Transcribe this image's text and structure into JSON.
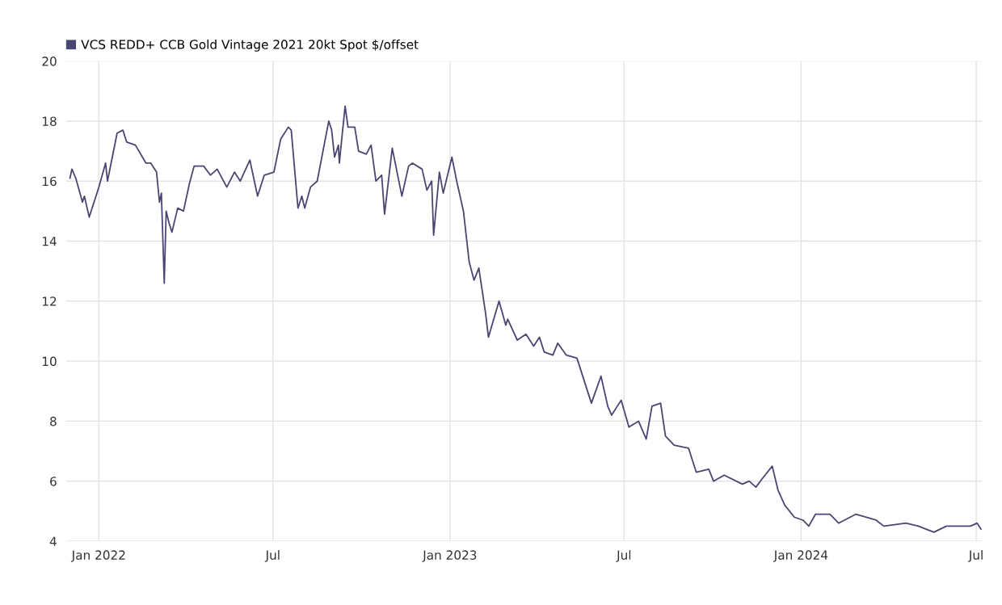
{
  "chart_data": {
    "type": "line",
    "legend": "top left",
    "grid": true,
    "marker": "none",
    "line_style": "solid",
    "xlim": [
      "2021-11-28",
      "2024-07-07"
    ],
    "xticks": [
      {
        "value": "2022-01-01",
        "label": "Jan 2022"
      },
      {
        "value": "2022-07-01",
        "label": "Jul"
      },
      {
        "value": "2023-01-01",
        "label": "Jan 2023"
      },
      {
        "value": "2023-07-01",
        "label": "Jul"
      },
      {
        "value": "2024-01-01",
        "label": "Jan 2024"
      },
      {
        "value": "2024-07-01",
        "label": "Jul"
      }
    ],
    "ylim": [
      4,
      20
    ],
    "yticks": [
      4,
      6,
      8,
      10,
      12,
      14,
      16,
      18,
      20
    ],
    "x": [
      "2021-12-02",
      "2021-12-04",
      "2021-12-08",
      "2021-12-15",
      "2021-12-17",
      "2021-12-22",
      "2022-01-01",
      "2022-01-08",
      "2022-01-10",
      "2022-01-20",
      "2022-01-26",
      "2022-01-30",
      "2022-02-08",
      "2022-02-19",
      "2022-02-24",
      "2022-03-02",
      "2022-03-05",
      "2022-03-07",
      "2022-03-10",
      "2022-03-12",
      "2022-03-15",
      "2022-03-18",
      "2022-03-24",
      "2022-03-30",
      "2022-04-05",
      "2022-04-10",
      "2022-04-20",
      "2022-04-27",
      "2022-05-04",
      "2022-05-14",
      "2022-05-22",
      "2022-05-28",
      "2022-06-07",
      "2022-06-15",
      "2022-06-22",
      "2022-07-02",
      "2022-07-09",
      "2022-07-17",
      "2022-07-20",
      "2022-07-27",
      "2022-07-31",
      "2022-08-03",
      "2022-08-09",
      "2022-08-16",
      "2022-08-28",
      "2022-08-31",
      "2022-09-03",
      "2022-09-07",
      "2022-09-08",
      "2022-09-14",
      "2022-09-17",
      "2022-09-22",
      "2022-09-24",
      "2022-09-28",
      "2022-10-06",
      "2022-10-11",
      "2022-10-16",
      "2022-10-22",
      "2022-10-25",
      "2022-11-02",
      "2022-11-12",
      "2022-11-19",
      "2022-11-23",
      "2022-12-03",
      "2022-12-08",
      "2022-12-13",
      "2022-12-15",
      "2022-12-21",
      "2022-12-25",
      "2023-01-03",
      "2023-01-08",
      "2023-01-15",
      "2023-01-21",
      "2023-01-26",
      "2023-01-31",
      "2023-02-07",
      "2023-02-10",
      "2023-02-21",
      "2023-02-28",
      "2023-03-02",
      "2023-03-12",
      "2023-03-21",
      "2023-03-29",
      "2023-04-04",
      "2023-04-09",
      "2023-04-18",
      "2023-04-23",
      "2023-05-02",
      "2023-05-13",
      "2023-05-20",
      "2023-05-28",
      "2023-06-07",
      "2023-06-14",
      "2023-06-18",
      "2023-06-28",
      "2023-07-06",
      "2023-07-16",
      "2023-07-24",
      "2023-07-30",
      "2023-08-08",
      "2023-08-13",
      "2023-08-22",
      "2023-09-06",
      "2023-09-09",
      "2023-09-14",
      "2023-09-27",
      "2023-10-02",
      "2023-10-13",
      "2023-11-01",
      "2023-11-08",
      "2023-11-15",
      "2023-11-22",
      "2023-12-02",
      "2023-12-08",
      "2023-12-15",
      "2023-12-25",
      "2024-01-03",
      "2024-01-09",
      "2024-01-16",
      "2024-01-31",
      "2024-02-09",
      "2024-02-27",
      "2024-03-19",
      "2024-03-27",
      "2024-04-19",
      "2024-05-02",
      "2024-05-18",
      "2024-05-31",
      "2024-06-09",
      "2024-06-25",
      "2024-07-02",
      "2024-07-06"
    ],
    "series": [
      {
        "name": "VCS REDD+ CCB Gold Vintage 2021 20kt Spot $/offset",
        "color": "#4a4673",
        "values": [
          16.1,
          16.4,
          16.1,
          15.3,
          15.5,
          14.8,
          15.8,
          16.6,
          16.0,
          17.6,
          17.7,
          17.3,
          17.2,
          16.6,
          16.6,
          16.3,
          15.3,
          15.6,
          12.6,
          15.0,
          14.6,
          14.3,
          15.1,
          15.0,
          15.9,
          16.5,
          16.5,
          16.2,
          16.4,
          15.8,
          16.3,
          16.0,
          16.7,
          15.5,
          16.2,
          16.3,
          17.4,
          17.8,
          17.7,
          15.1,
          15.5,
          15.1,
          15.8,
          16.0,
          18.0,
          17.7,
          16.8,
          17.2,
          16.6,
          18.5,
          17.8,
          17.8,
          17.8,
          17.0,
          16.9,
          17.2,
          16.0,
          16.2,
          14.9,
          17.1,
          15.5,
          16.5,
          16.6,
          16.4,
          15.7,
          16.0,
          14.2,
          16.3,
          15.6,
          16.8,
          16.0,
          15.0,
          13.3,
          12.7,
          13.1,
          11.6,
          10.8,
          12.0,
          11.2,
          11.4,
          10.7,
          10.9,
          10.5,
          10.8,
          10.3,
          10.2,
          10.6,
          10.2,
          10.1,
          9.4,
          8.6,
          9.5,
          8.5,
          8.2,
          8.7,
          7.8,
          8.0,
          7.4,
          8.5,
          8.6,
          7.5,
          7.2,
          7.1,
          6.8,
          6.3,
          6.4,
          6.0,
          6.2,
          5.9,
          6.0,
          5.8,
          6.1,
          6.5,
          5.7,
          5.2,
          4.8,
          4.7,
          4.5,
          4.9,
          4.9,
          4.6,
          4.9,
          4.7,
          4.5,
          4.6,
          4.5,
          4.3,
          4.5,
          4.5,
          4.5,
          4.6,
          4.4
        ]
      }
    ]
  }
}
